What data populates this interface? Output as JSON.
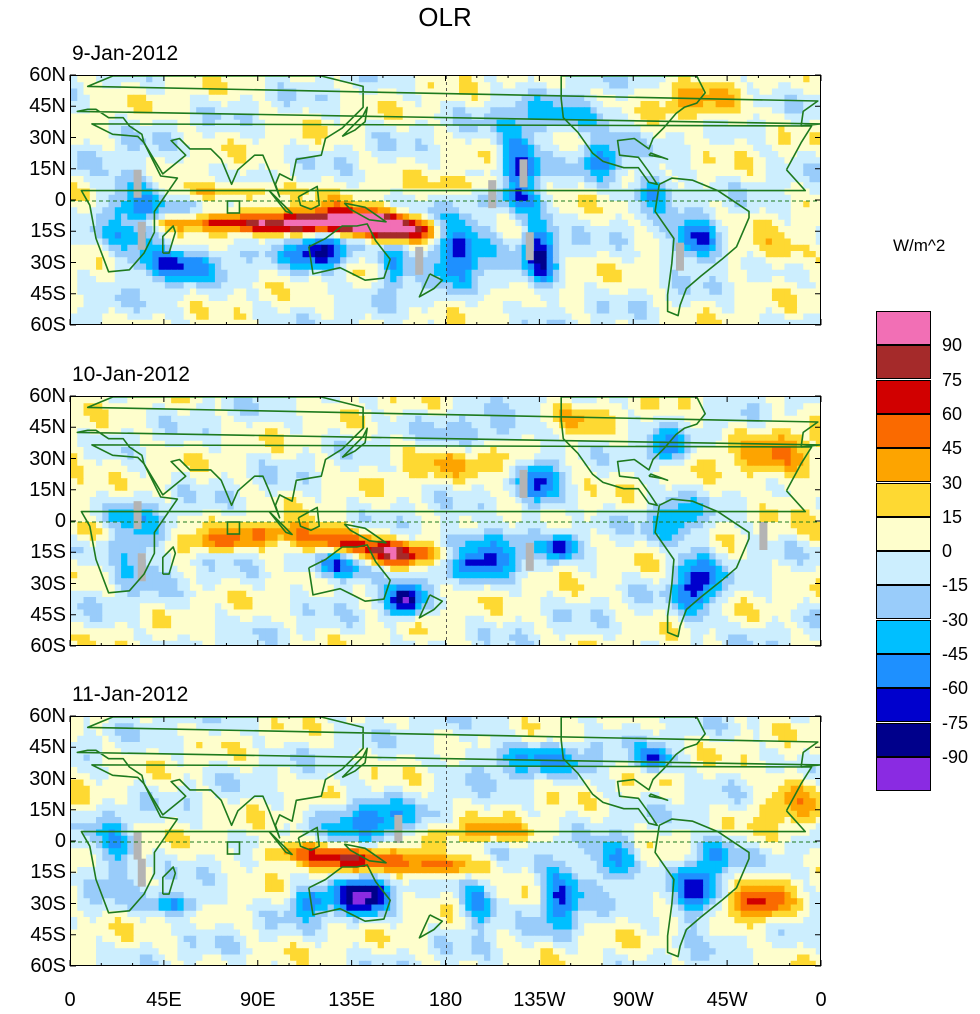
{
  "title": "OLR",
  "panels": [
    {
      "date": "9-Jan-2012"
    },
    {
      "date": "10-Jan-2012"
    },
    {
      "date": "11-Jan-2012"
    }
  ],
  "lat_labels": [
    "60N",
    "45N",
    "30N",
    "15N",
    "0",
    "15S",
    "30S",
    "45S",
    "60S"
  ],
  "lon_labels": [
    "0",
    "45E",
    "90E",
    "135E",
    "180",
    "135W",
    "90W",
    "45W",
    "0"
  ],
  "colorbar": {
    "units": "W/m^2",
    "labels": [
      "90",
      "75",
      "60",
      "45",
      "30",
      "15",
      "0",
      "-15",
      "-30",
      "-45",
      "-60",
      "-75",
      "-90"
    ],
    "colors": [
      "#f26fb5",
      "#a52a2a",
      "#d10000",
      "#fa6a00",
      "#fda400",
      "#fed932",
      "#fefecc",
      "#cceefe",
      "#99ccfa",
      "#00bfff",
      "#1e90ff",
      "#0000cd",
      "#00008b",
      "#8a2be2"
    ]
  }
}
